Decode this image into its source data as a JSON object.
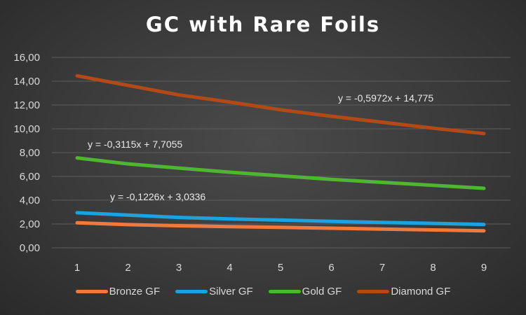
{
  "chart_data": {
    "type": "line",
    "title": "GC with Rare Foils",
    "xlabel": "",
    "ylabel": "",
    "categories": [
      "1",
      "2",
      "3",
      "4",
      "5",
      "6",
      "7",
      "8",
      "9"
    ],
    "ylim": [
      0,
      16
    ],
    "y_ticks": [
      "0,00",
      "2,00",
      "4,00",
      "6,00",
      "8,00",
      "10,00",
      "12,00",
      "14,00",
      "16,00"
    ],
    "grid": true,
    "legend_position": "bottom",
    "series": [
      {
        "name": "Bronze GF",
        "color": "#f07a3c",
        "values": [
          2.1,
          1.95,
          1.85,
          1.78,
          1.72,
          1.65,
          1.57,
          1.5,
          1.43
        ]
      },
      {
        "name": "Silver GF",
        "color": "#1aa3e0",
        "values": [
          2.95,
          2.75,
          2.55,
          2.43,
          2.33,
          2.22,
          2.13,
          2.05,
          1.96
        ]
      },
      {
        "name": "Gold GF",
        "color": "#4fb631",
        "values": [
          7.55,
          7.05,
          6.7,
          6.35,
          6.05,
          5.75,
          5.5,
          5.25,
          5.0
        ]
      },
      {
        "name": "Diamond GF",
        "color": "#b24a17",
        "values": [
          14.45,
          13.65,
          12.85,
          12.25,
          11.6,
          11.05,
          10.55,
          10.05,
          9.6
        ]
      }
    ],
    "trendlines": [
      {
        "series": "Diamond GF",
        "equation": "y = -0,5972x + 14,775"
      },
      {
        "series": "Gold GF",
        "equation": "y = -0,3115x + 7,7055"
      },
      {
        "series": "Silver GF",
        "equation": "y = -0,1226x + 3,0336"
      }
    ]
  }
}
